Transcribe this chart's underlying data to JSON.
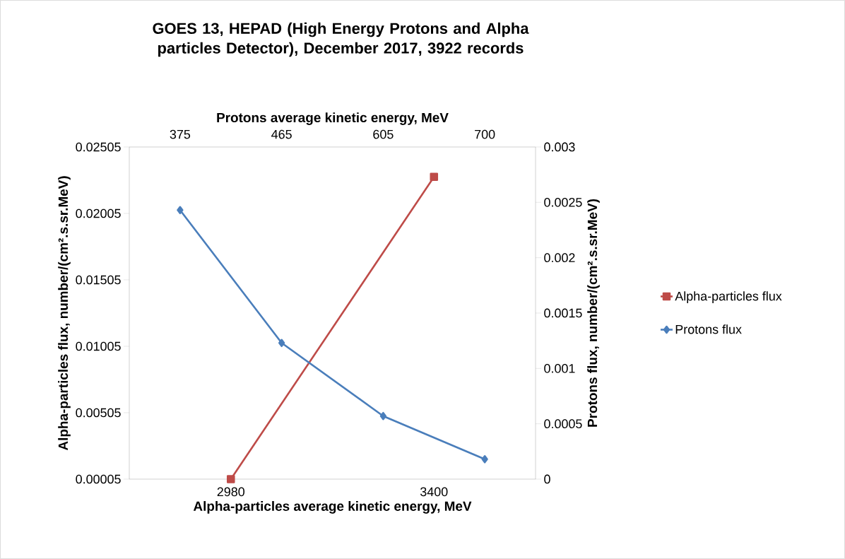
{
  "chart_data": [
    {
      "type": "line",
      "title": "GOES 13, HEPAD (High Energy Protons and Alpha particles Detector), December 2017, 3922 records",
      "xlabel": "Alpha-particles average kinetic energy, MeV",
      "ylabel": "Alpha-particles flux, number/(cm².s.sr.MeV)",
      "categories": [
        "2980",
        "3400"
      ],
      "ylim": [
        5e-05,
        0.02505
      ],
      "yticks": [
        {
          "value": 5e-05,
          "label": "0.00005"
        },
        {
          "value": 0.00505,
          "label": "0.00505"
        },
        {
          "value": 0.01005,
          "label": "0.01005"
        },
        {
          "value": 0.01505,
          "label": "0.01505"
        },
        {
          "value": 0.02005,
          "label": "0.02005"
        },
        {
          "value": 0.02505,
          "label": "0.02505"
        }
      ],
      "legend": "right",
      "marker": "square",
      "series": [
        {
          "name": "Alpha-particles flux",
          "color": "#be4b48",
          "values": [
            5e-05,
            0.0228
          ]
        }
      ]
    },
    {
      "type": "line",
      "xlabel": "Protons average kinetic energy, MeV",
      "ylabel": "Protons flux, number/(cm².s.sr.MeV)",
      "categories": [
        "375",
        "465",
        "605",
        "700"
      ],
      "ylim": [
        0,
        0.003
      ],
      "yticks": [
        0,
        0.0005,
        0.001,
        0.0015,
        0.002,
        0.0025,
        0.003
      ],
      "legend": "right",
      "marker": "diamond",
      "series": [
        {
          "name": "Protons flux",
          "color": "#4a7ebb",
          "values": [
            0.00243,
            0.00123,
            0.00057,
            0.00018
          ]
        }
      ]
    }
  ]
}
